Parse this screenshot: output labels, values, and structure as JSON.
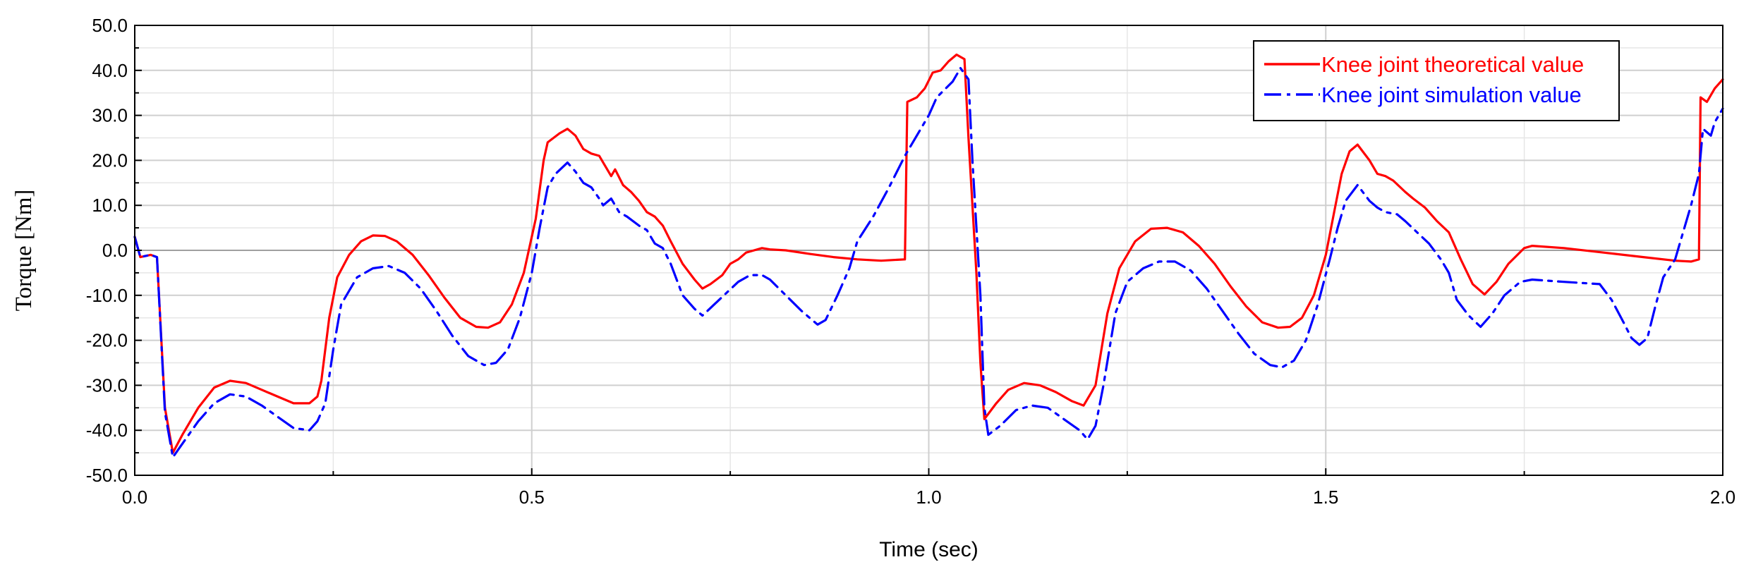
{
  "chart_data": {
    "type": "line",
    "xlabel": "Time (sec)",
    "ylabel": "Torque [Nm]",
    "xlim": [
      0.0,
      2.0
    ],
    "ylim": [
      -50.0,
      50.0
    ],
    "x_ticks": [
      "0.0",
      "0.5",
      "1.0",
      "1.5",
      "2.0"
    ],
    "y_ticks": [
      "50.0",
      "40.0",
      "30.0",
      "20.0",
      "10.0",
      "0.0",
      "-10.0",
      "-20.0",
      "-30.0",
      "-40.0",
      "-50.0"
    ],
    "grid": true,
    "legend_position": "top-right",
    "series": [
      {
        "name": "Knee joint theoretical value",
        "color": "#ff0000",
        "style": "solid",
        "points": [
          [
            0.0,
            3.0
          ],
          [
            0.007,
            -1.5
          ],
          [
            0.02,
            -1.0
          ],
          [
            0.028,
            -1.5
          ],
          [
            0.038,
            -35.0
          ],
          [
            0.048,
            -45.0
          ],
          [
            0.06,
            -41.0
          ],
          [
            0.08,
            -35.0
          ],
          [
            0.1,
            -30.5
          ],
          [
            0.12,
            -29.0
          ],
          [
            0.14,
            -29.5
          ],
          [
            0.16,
            -31.0
          ],
          [
            0.18,
            -32.5
          ],
          [
            0.2,
            -34.0
          ],
          [
            0.22,
            -34.0
          ],
          [
            0.23,
            -32.5
          ],
          [
            0.235,
            -29.0
          ],
          [
            0.245,
            -15.0
          ],
          [
            0.255,
            -6.0
          ],
          [
            0.27,
            -1.0
          ],
          [
            0.285,
            2.0
          ],
          [
            0.3,
            3.3
          ],
          [
            0.315,
            3.2
          ],
          [
            0.33,
            2.0
          ],
          [
            0.35,
            -1.0
          ],
          [
            0.37,
            -5.5
          ],
          [
            0.39,
            -10.5
          ],
          [
            0.41,
            -15.0
          ],
          [
            0.43,
            -17.0
          ],
          [
            0.445,
            -17.2
          ],
          [
            0.46,
            -16.0
          ],
          [
            0.475,
            -12.0
          ],
          [
            0.49,
            -5.0
          ],
          [
            0.505,
            7.0
          ],
          [
            0.515,
            20.0
          ],
          [
            0.52,
            24.0
          ],
          [
            0.535,
            26.0
          ],
          [
            0.545,
            27.0
          ],
          [
            0.555,
            25.5
          ],
          [
            0.565,
            22.5
          ],
          [
            0.575,
            21.5
          ],
          [
            0.585,
            21.0
          ],
          [
            0.59,
            19.5
          ],
          [
            0.6,
            16.5
          ],
          [
            0.605,
            18.0
          ],
          [
            0.615,
            14.5
          ],
          [
            0.625,
            13.0
          ],
          [
            0.635,
            11.0
          ],
          [
            0.645,
            8.5
          ],
          [
            0.655,
            7.5
          ],
          [
            0.665,
            5.5
          ],
          [
            0.675,
            2.0
          ],
          [
            0.69,
            -3.0
          ],
          [
            0.705,
            -6.5
          ],
          [
            0.715,
            -8.5
          ],
          [
            0.725,
            -7.5
          ],
          [
            0.74,
            -5.5
          ],
          [
            0.75,
            -3.0
          ],
          [
            0.76,
            -2.0
          ],
          [
            0.77,
            -0.5
          ],
          [
            0.78,
            0.0
          ],
          [
            0.79,
            0.5
          ],
          [
            0.8,
            0.2
          ],
          [
            0.82,
            0.0
          ],
          [
            0.85,
            -0.8
          ],
          [
            0.88,
            -1.5
          ],
          [
            0.91,
            -2.0
          ],
          [
            0.94,
            -2.3
          ],
          [
            0.97,
            -2.0
          ],
          [
            0.973,
            33.0
          ],
          [
            0.985,
            34.0
          ],
          [
            0.995,
            36.0
          ],
          [
            1.005,
            39.5
          ],
          [
            1.015,
            40.0
          ],
          [
            1.025,
            42.0
          ],
          [
            1.035,
            43.5
          ],
          [
            1.045,
            42.5
          ],
          [
            1.05,
            25.0
          ],
          [
            1.06,
            -5.0
          ],
          [
            1.065,
            -25.0
          ],
          [
            1.07,
            -37.5
          ],
          [
            1.085,
            -34.0
          ],
          [
            1.1,
            -31.0
          ],
          [
            1.12,
            -29.5
          ],
          [
            1.14,
            -30.0
          ],
          [
            1.16,
            -31.5
          ],
          [
            1.18,
            -33.5
          ],
          [
            1.195,
            -34.5
          ],
          [
            1.21,
            -30.0
          ],
          [
            1.225,
            -14.0
          ],
          [
            1.24,
            -4.0
          ],
          [
            1.26,
            2.0
          ],
          [
            1.28,
            4.8
          ],
          [
            1.3,
            5.0
          ],
          [
            1.32,
            4.0
          ],
          [
            1.34,
            1.0
          ],
          [
            1.36,
            -3.0
          ],
          [
            1.38,
            -8.0
          ],
          [
            1.4,
            -12.5
          ],
          [
            1.42,
            -16.0
          ],
          [
            1.44,
            -17.2
          ],
          [
            1.455,
            -17.0
          ],
          [
            1.47,
            -15.0
          ],
          [
            1.485,
            -10.0
          ],
          [
            1.5,
            -1.0
          ],
          [
            1.51,
            8.0
          ],
          [
            1.52,
            17.0
          ],
          [
            1.53,
            22.0
          ],
          [
            1.54,
            23.5
          ],
          [
            1.555,
            20.0
          ],
          [
            1.565,
            17.0
          ],
          [
            1.575,
            16.5
          ],
          [
            1.585,
            15.5
          ],
          [
            1.6,
            13.0
          ],
          [
            1.61,
            11.5
          ],
          [
            1.625,
            9.5
          ],
          [
            1.64,
            6.5
          ],
          [
            1.655,
            4.0
          ],
          [
            1.67,
            -2.0
          ],
          [
            1.685,
            -7.5
          ],
          [
            1.7,
            -9.8
          ],
          [
            1.715,
            -7.0
          ],
          [
            1.73,
            -3.0
          ],
          [
            1.75,
            0.5
          ],
          [
            1.76,
            1.0
          ],
          [
            1.8,
            0.5
          ],
          [
            1.85,
            -0.5
          ],
          [
            1.9,
            -1.5
          ],
          [
            1.94,
            -2.3
          ],
          [
            1.96,
            -2.5
          ],
          [
            1.97,
            -2.0
          ],
          [
            1.972,
            34.0
          ],
          [
            1.98,
            33.0
          ],
          [
            1.99,
            36.0
          ],
          [
            2.0,
            38.0
          ]
        ]
      },
      {
        "name": "Knee joint simulation value",
        "color": "#0000ff",
        "style": "dashdot",
        "points": [
          [
            0.0,
            3.0
          ],
          [
            0.007,
            -1.5
          ],
          [
            0.02,
            -1.0
          ],
          [
            0.028,
            -1.5
          ],
          [
            0.038,
            -36.0
          ],
          [
            0.048,
            -46.0
          ],
          [
            0.06,
            -43.0
          ],
          [
            0.08,
            -38.0
          ],
          [
            0.1,
            -34.0
          ],
          [
            0.12,
            -32.0
          ],
          [
            0.14,
            -32.5
          ],
          [
            0.16,
            -34.5
          ],
          [
            0.18,
            -37.0
          ],
          [
            0.2,
            -39.5
          ],
          [
            0.22,
            -40.0
          ],
          [
            0.23,
            -38.0
          ],
          [
            0.24,
            -34.0
          ],
          [
            0.25,
            -22.0
          ],
          [
            0.26,
            -12.0
          ],
          [
            0.28,
            -6.0
          ],
          [
            0.3,
            -4.0
          ],
          [
            0.32,
            -3.5
          ],
          [
            0.34,
            -5.0
          ],
          [
            0.36,
            -8.5
          ],
          [
            0.38,
            -13.5
          ],
          [
            0.4,
            -19.0
          ],
          [
            0.42,
            -23.5
          ],
          [
            0.44,
            -25.5
          ],
          [
            0.455,
            -25.0
          ],
          [
            0.47,
            -22.0
          ],
          [
            0.485,
            -15.0
          ],
          [
            0.5,
            -5.0
          ],
          [
            0.51,
            5.0
          ],
          [
            0.52,
            14.0
          ],
          [
            0.53,
            17.0
          ],
          [
            0.545,
            19.5
          ],
          [
            0.555,
            17.5
          ],
          [
            0.565,
            15.0
          ],
          [
            0.575,
            14.0
          ],
          [
            0.585,
            11.5
          ],
          [
            0.59,
            10.0
          ],
          [
            0.6,
            11.5
          ],
          [
            0.61,
            8.5
          ],
          [
            0.62,
            7.5
          ],
          [
            0.635,
            5.5
          ],
          [
            0.645,
            4.5
          ],
          [
            0.655,
            1.5
          ],
          [
            0.665,
            0.5
          ],
          [
            0.675,
            -3.0
          ],
          [
            0.69,
            -10.0
          ],
          [
            0.705,
            -13.0
          ],
          [
            0.715,
            -14.5
          ],
          [
            0.73,
            -12.0
          ],
          [
            0.745,
            -9.5
          ],
          [
            0.76,
            -7.0
          ],
          [
            0.775,
            -5.5
          ],
          [
            0.79,
            -5.5
          ],
          [
            0.8,
            -6.5
          ],
          [
            0.82,
            -10.0
          ],
          [
            0.84,
            -13.5
          ],
          [
            0.86,
            -16.5
          ],
          [
            0.87,
            -15.5
          ],
          [
            0.885,
            -10.0
          ],
          [
            0.9,
            -4.0
          ],
          [
            0.91,
            2.0
          ],
          [
            0.93,
            7.5
          ],
          [
            0.95,
            14.0
          ],
          [
            0.97,
            21.0
          ],
          [
            0.99,
            27.0
          ],
          [
            1.0,
            30.0
          ],
          [
            1.01,
            34.0
          ],
          [
            1.03,
            37.5
          ],
          [
            1.04,
            40.5
          ],
          [
            1.05,
            38.0
          ],
          [
            1.055,
            20.0
          ],
          [
            1.065,
            -10.0
          ],
          [
            1.07,
            -35.0
          ],
          [
            1.075,
            -41.0
          ],
          [
            1.09,
            -39.0
          ],
          [
            1.11,
            -35.5
          ],
          [
            1.13,
            -34.5
          ],
          [
            1.15,
            -35.0
          ],
          [
            1.17,
            -37.5
          ],
          [
            1.19,
            -40.0
          ],
          [
            1.2,
            -42.0
          ],
          [
            1.21,
            -39.0
          ],
          [
            1.22,
            -30.0
          ],
          [
            1.235,
            -14.0
          ],
          [
            1.25,
            -7.0
          ],
          [
            1.27,
            -4.0
          ],
          [
            1.29,
            -2.5
          ],
          [
            1.31,
            -2.5
          ],
          [
            1.33,
            -4.5
          ],
          [
            1.35,
            -8.5
          ],
          [
            1.37,
            -13.5
          ],
          [
            1.39,
            -18.5
          ],
          [
            1.41,
            -23.0
          ],
          [
            1.43,
            -25.5
          ],
          [
            1.445,
            -26.0
          ],
          [
            1.46,
            -24.5
          ],
          [
            1.475,
            -20.0
          ],
          [
            1.49,
            -12.0
          ],
          [
            1.505,
            -2.0
          ],
          [
            1.515,
            5.0
          ],
          [
            1.525,
            11.0
          ],
          [
            1.54,
            14.5
          ],
          [
            1.555,
            11.0
          ],
          [
            1.565,
            9.5
          ],
          [
            1.575,
            8.5
          ],
          [
            1.59,
            8.0
          ],
          [
            1.6,
            6.5
          ],
          [
            1.615,
            4.0
          ],
          [
            1.63,
            1.5
          ],
          [
            1.645,
            -2.0
          ],
          [
            1.655,
            -5.0
          ],
          [
            1.665,
            -11.0
          ],
          [
            1.68,
            -14.5
          ],
          [
            1.695,
            -17.0
          ],
          [
            1.71,
            -14.0
          ],
          [
            1.725,
            -10.0
          ],
          [
            1.745,
            -7.0
          ],
          [
            1.76,
            -6.5
          ],
          [
            1.8,
            -7.0
          ],
          [
            1.845,
            -7.5
          ],
          [
            1.86,
            -11.0
          ],
          [
            1.875,
            -16.0
          ],
          [
            1.885,
            -19.5
          ],
          [
            1.895,
            -21.0
          ],
          [
            1.905,
            -19.5
          ],
          [
            1.915,
            -12.5
          ],
          [
            1.925,
            -6.0
          ],
          [
            1.94,
            -2.0
          ],
          [
            1.95,
            4.0
          ],
          [
            1.96,
            10.0
          ],
          [
            1.97,
            17.0
          ],
          [
            1.975,
            27.0
          ],
          [
            1.985,
            25.5
          ],
          [
            1.99,
            28.5
          ],
          [
            2.0,
            31.5
          ]
        ]
      }
    ]
  }
}
